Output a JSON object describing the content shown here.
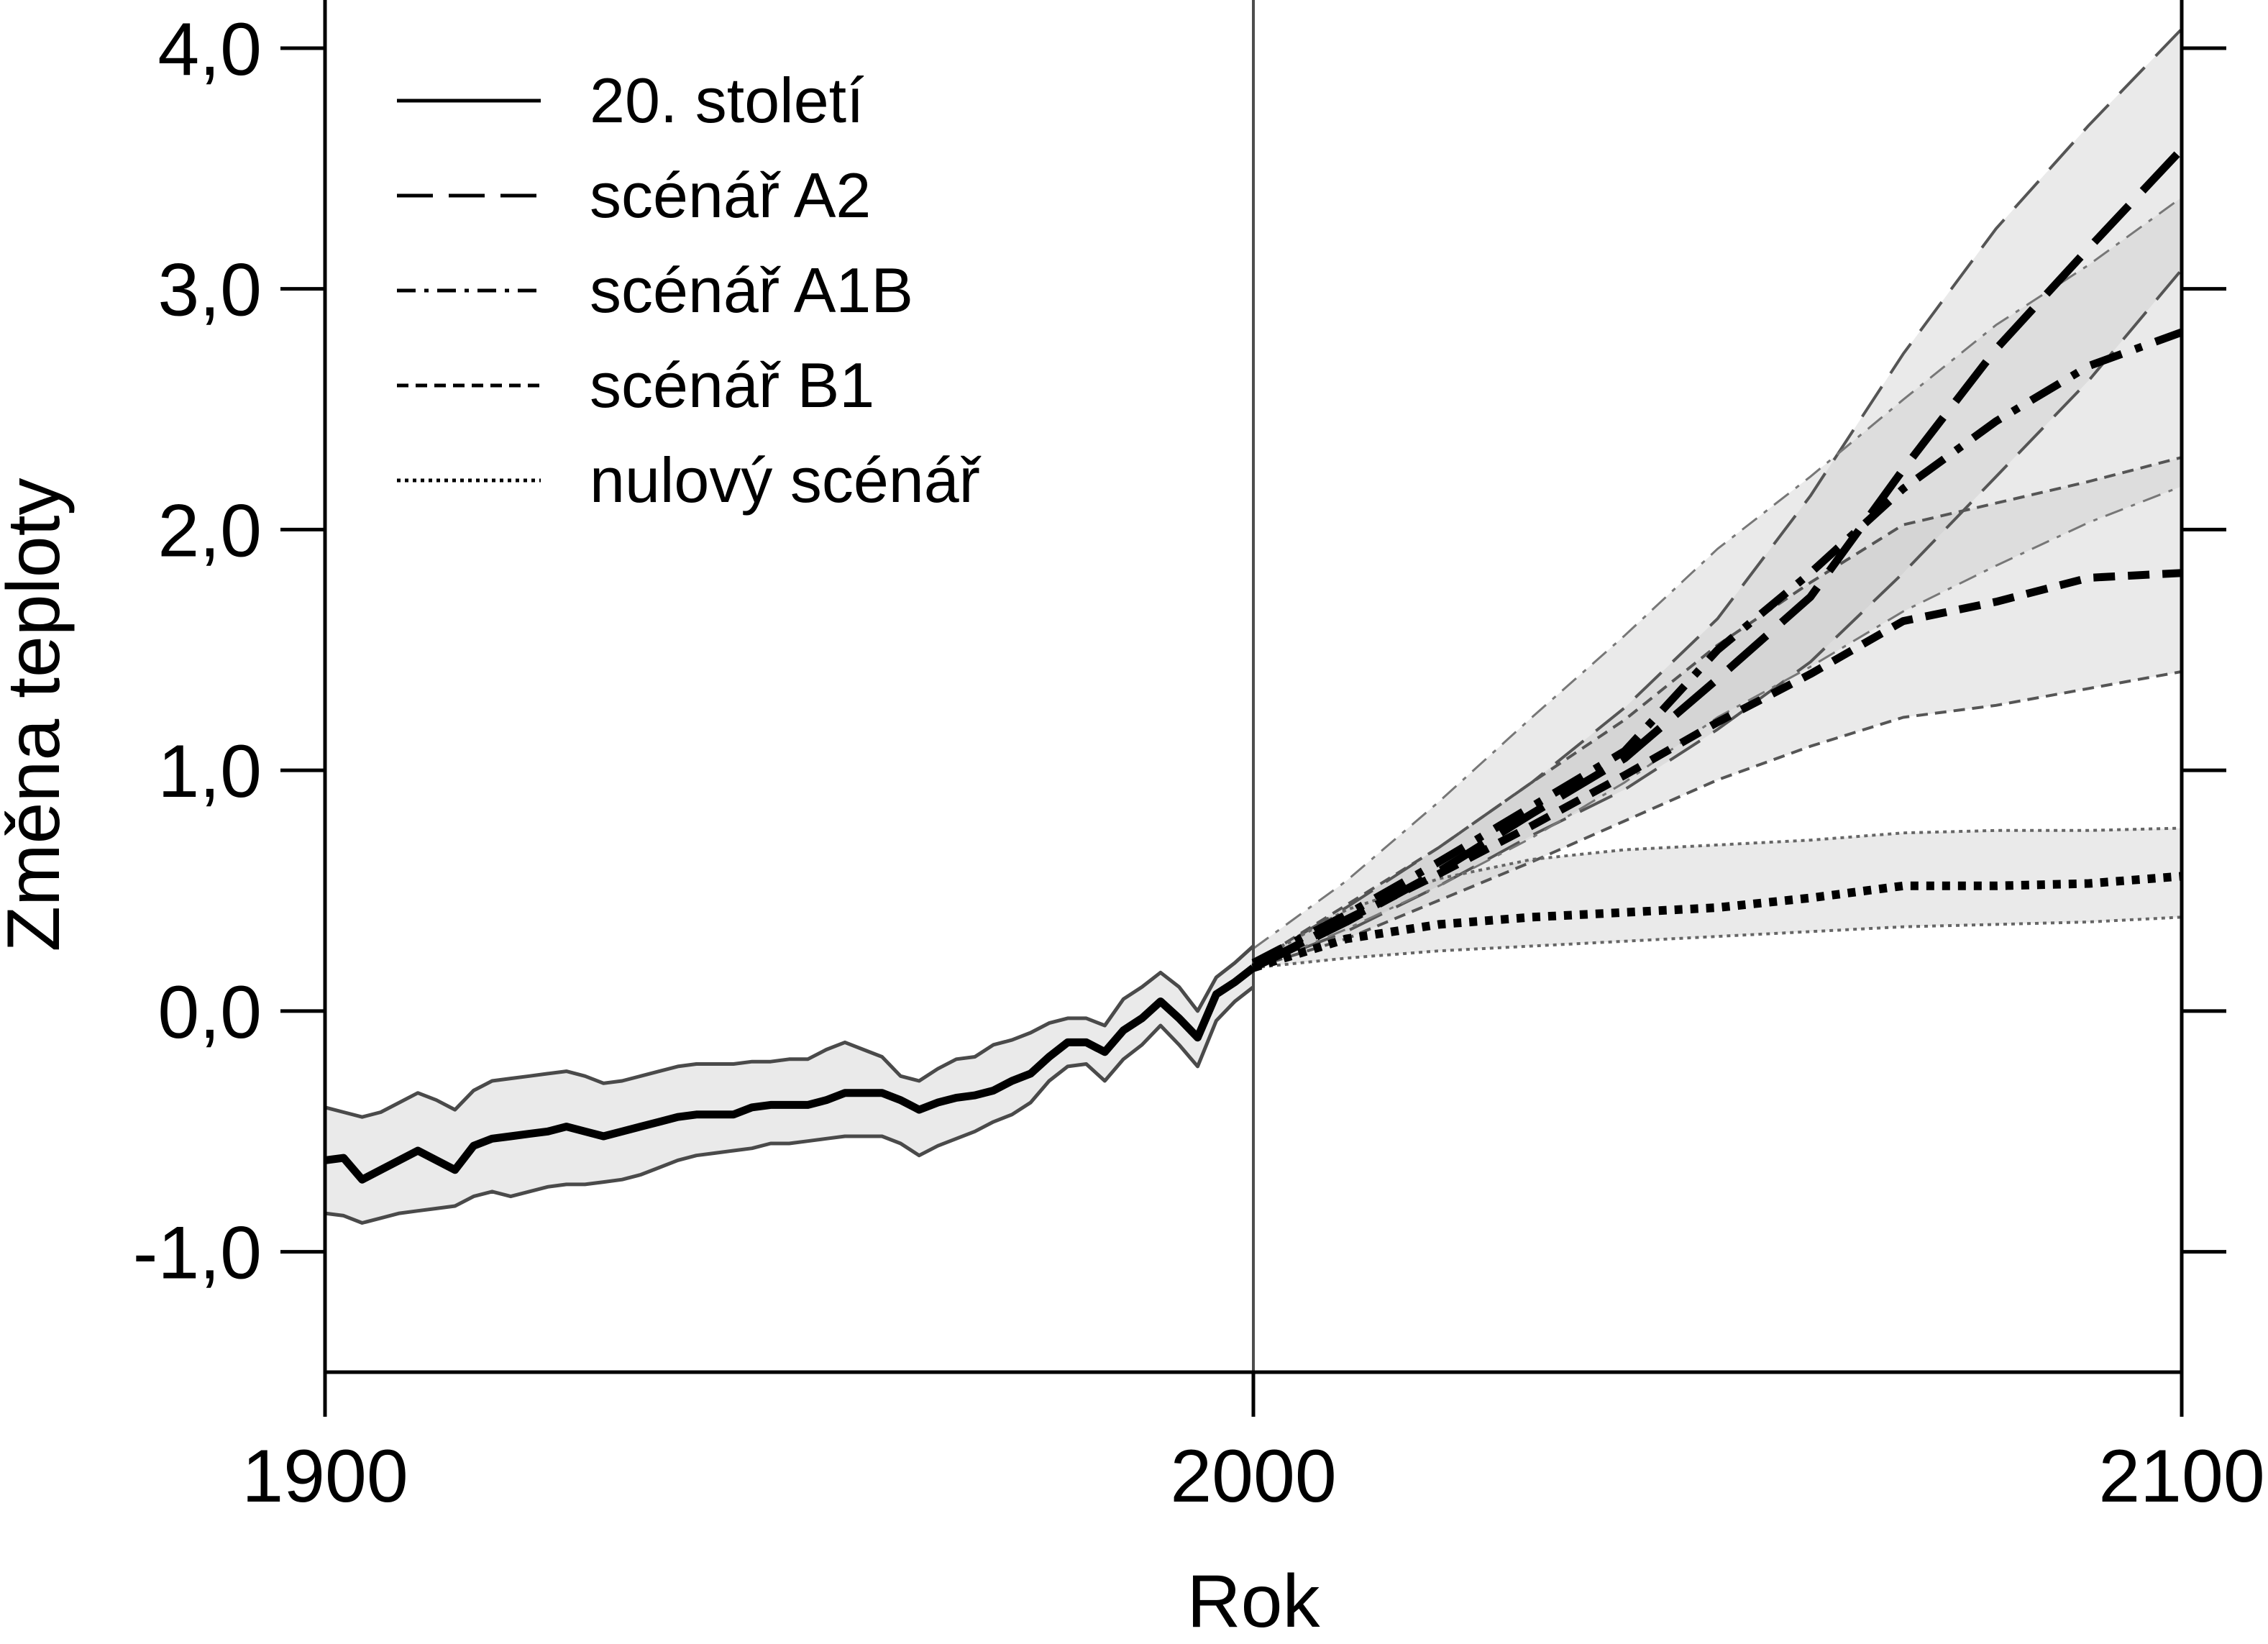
{
  "chart_data": {
    "type": "line",
    "title": "",
    "xlabel": "Rok",
    "ylabel": "Změna teploty",
    "xlim": [
      1900,
      2100
    ],
    "ylim": [
      -1.5,
      4.2
    ],
    "x_ticks": [
      {
        "value": 1900,
        "label": "1900"
      },
      {
        "value": 2000,
        "label": "2000"
      },
      {
        "value": 2100,
        "label": "2100"
      }
    ],
    "y_ticks": [
      {
        "value": 4.0,
        "label": "4,0"
      },
      {
        "value": 3.0,
        "label": "3,0"
      },
      {
        "value": 2.0,
        "label": "2,0"
      },
      {
        "value": 1.0,
        "label": "1,0"
      },
      {
        "value": 0.0,
        "label": "0,0"
      },
      {
        "value": -1.0,
        "label": "-1,0"
      }
    ],
    "grid": false,
    "legend_position": "top-left",
    "reference_line_x": 2000,
    "legend": [
      {
        "label": "20. století",
        "style": "solid"
      },
      {
        "label": "scénář A2",
        "style": "longdash"
      },
      {
        "label": "scénář A1B",
        "style": "dashdot"
      },
      {
        "label": "scénář B1",
        "style": "dash"
      },
      {
        "label": "nulový scénář",
        "style": "dot"
      }
    ],
    "series": [
      {
        "label": "20. století",
        "style": "solid",
        "x": [
          1900,
          1902,
          1904,
          1906,
          1908,
          1910,
          1912,
          1914,
          1916,
          1918,
          1920,
          1922,
          1924,
          1926,
          1928,
          1930,
          1932,
          1934,
          1936,
          1938,
          1940,
          1942,
          1944,
          1946,
          1948,
          1950,
          1952,
          1954,
          1956,
          1958,
          1960,
          1962,
          1964,
          1966,
          1968,
          1970,
          1972,
          1974,
          1976,
          1978,
          1980,
          1982,
          1984,
          1986,
          1988,
          1990,
          1992,
          1994,
          1996,
          1998,
          2000
        ],
        "y": [
          -0.62,
          -0.61,
          -0.7,
          -0.66,
          -0.62,
          -0.58,
          -0.62,
          -0.66,
          -0.56,
          -0.53,
          -0.52,
          -0.51,
          -0.5,
          -0.48,
          -0.5,
          -0.52,
          -0.5,
          -0.48,
          -0.46,
          -0.44,
          -0.43,
          -0.43,
          -0.43,
          -0.4,
          -0.39,
          -0.39,
          -0.39,
          -0.37,
          -0.34,
          -0.34,
          -0.34,
          -0.37,
          -0.41,
          -0.38,
          -0.36,
          -0.35,
          -0.33,
          -0.29,
          -0.26,
          -0.19,
          -0.13,
          -0.13,
          -0.17,
          -0.08,
          -0.03,
          0.04,
          -0.03,
          -0.11,
          0.07,
          0.12,
          0.18
        ],
        "lower": [
          -0.84,
          -0.85,
          -0.88,
          -0.86,
          -0.84,
          -0.83,
          -0.82,
          -0.81,
          -0.77,
          -0.75,
          -0.77,
          -0.75,
          -0.73,
          -0.72,
          -0.72,
          -0.71,
          -0.7,
          -0.68,
          -0.65,
          -0.62,
          -0.6,
          -0.59,
          -0.58,
          -0.57,
          -0.55,
          -0.55,
          -0.54,
          -0.53,
          -0.52,
          -0.52,
          -0.52,
          -0.55,
          -0.6,
          -0.56,
          -0.53,
          -0.5,
          -0.46,
          -0.43,
          -0.38,
          -0.29,
          -0.23,
          -0.22,
          -0.29,
          -0.2,
          -0.14,
          -0.06,
          -0.14,
          -0.23,
          -0.04,
          0.04,
          0.1
        ],
        "upper": [
          -0.4,
          -0.42,
          -0.44,
          -0.42,
          -0.38,
          -0.34,
          -0.37,
          -0.41,
          -0.33,
          -0.29,
          -0.28,
          -0.27,
          -0.26,
          -0.25,
          -0.27,
          -0.3,
          -0.29,
          -0.27,
          -0.25,
          -0.23,
          -0.22,
          -0.22,
          -0.22,
          -0.21,
          -0.21,
          -0.2,
          -0.2,
          -0.16,
          -0.13,
          -0.16,
          -0.19,
          -0.27,
          -0.29,
          -0.24,
          -0.2,
          -0.19,
          -0.14,
          -0.12,
          -0.09,
          -0.05,
          -0.03,
          -0.03,
          -0.06,
          0.05,
          0.1,
          0.16,
          0.1,
          0.0,
          0.14,
          0.2,
          0.27
        ]
      },
      {
        "label": "scénář A2",
        "style": "longdash",
        "x": [
          2000,
          2010,
          2020,
          2030,
          2040,
          2050,
          2060,
          2070,
          2080,
          2090,
          2100
        ],
        "y": [
          0.18,
          0.37,
          0.58,
          0.82,
          1.05,
          1.38,
          1.72,
          2.25,
          2.75,
          3.17,
          3.58
        ],
        "lower": [
          0.18,
          0.33,
          0.52,
          0.73,
          0.92,
          1.17,
          1.45,
          1.82,
          2.22,
          2.62,
          3.08
        ],
        "upper": [
          0.2,
          0.43,
          0.68,
          0.95,
          1.26,
          1.63,
          2.14,
          2.73,
          3.25,
          3.68,
          4.08
        ]
      },
      {
        "label": "scénář A1B",
        "style": "dashdot",
        "x": [
          2000,
          2010,
          2020,
          2030,
          2040,
          2050,
          2060,
          2070,
          2080,
          2090,
          2100
        ],
        "y": [
          0.2,
          0.4,
          0.62,
          0.85,
          1.08,
          1.5,
          1.82,
          2.17,
          2.45,
          2.68,
          2.82
        ],
        "lower": [
          0.18,
          0.34,
          0.52,
          0.72,
          0.95,
          1.22,
          1.43,
          1.66,
          1.85,
          2.03,
          2.18
        ],
        "upper": [
          0.26,
          0.54,
          0.87,
          1.22,
          1.56,
          1.92,
          2.22,
          2.54,
          2.85,
          3.1,
          3.38
        ]
      },
      {
        "label": "scénář B1",
        "style": "dash",
        "x": [
          2000,
          2010,
          2020,
          2030,
          2040,
          2050,
          2060,
          2070,
          2080,
          2090,
          2100
        ],
        "y": [
          0.18,
          0.38,
          0.57,
          0.77,
          0.98,
          1.2,
          1.4,
          1.62,
          1.7,
          1.8,
          1.82
        ],
        "lower": [
          0.18,
          0.3,
          0.46,
          0.62,
          0.79,
          0.96,
          1.1,
          1.22,
          1.27,
          1.34,
          1.41
        ],
        "upper": [
          0.2,
          0.44,
          0.68,
          0.95,
          1.21,
          1.52,
          1.78,
          2.02,
          2.11,
          2.2,
          2.3
        ]
      },
      {
        "label": "nulový scénář",
        "style": "dot",
        "x": [
          2000,
          2010,
          2020,
          2030,
          2040,
          2050,
          2060,
          2070,
          2080,
          2090,
          2100
        ],
        "y": [
          0.18,
          0.3,
          0.36,
          0.39,
          0.41,
          0.43,
          0.47,
          0.52,
          0.52,
          0.53,
          0.56
        ],
        "lower": [
          0.18,
          0.22,
          0.25,
          0.27,
          0.29,
          0.31,
          0.33,
          0.35,
          0.36,
          0.37,
          0.39
        ],
        "upper": [
          0.2,
          0.42,
          0.55,
          0.63,
          0.67,
          0.69,
          0.71,
          0.74,
          0.75,
          0.75,
          0.76
        ]
      }
    ]
  }
}
